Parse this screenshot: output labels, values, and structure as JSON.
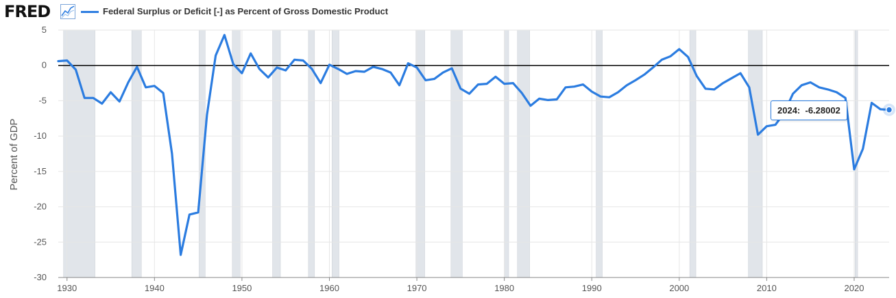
{
  "header": {
    "logo": "FRED",
    "logo_icon": "line-chart-icon",
    "legend_label": "Federal Surplus or Deficit [-] as Percent of Gross Domestic Product"
  },
  "tooltip": {
    "year": "2024:",
    "value": "-6.28002"
  },
  "colors": {
    "series": "#2B7CE0",
    "recession": "#E1E5EA",
    "zero_line": "#000000"
  },
  "chart_data": {
    "type": "line",
    "title": "Federal Surplus or Deficit [-] as Percent of Gross Domestic Product",
    "ylabel": "Percent of GDP",
    "xlabel": "",
    "xlim": [
      1929,
      2024
    ],
    "ylim": [
      -30,
      5
    ],
    "x_ticks": [
      1930,
      1940,
      1950,
      1960,
      1970,
      1980,
      1990,
      2000,
      2010,
      2020
    ],
    "y_ticks": [
      5,
      0,
      -5,
      -10,
      -15,
      -20,
      -25,
      -30
    ],
    "grid": true,
    "recessions": [
      [
        1929.6,
        1933.2
      ],
      [
        1937.4,
        1938.5
      ],
      [
        1945.1,
        1945.8
      ],
      [
        1948.9,
        1949.8
      ],
      [
        1953.5,
        1954.4
      ],
      [
        1957.6,
        1958.3
      ],
      [
        1960.3,
        1961.1
      ],
      [
        1969.9,
        1970.9
      ],
      [
        1973.9,
        1975.2
      ],
      [
        1980.0,
        1980.5
      ],
      [
        1981.5,
        1982.9
      ],
      [
        1990.5,
        1991.2
      ],
      [
        2001.2,
        2001.9
      ],
      [
        2007.9,
        2009.5
      ],
      [
        2020.1,
        2020.4
      ]
    ],
    "series": [
      {
        "name": "Federal Surplus or Deficit [-] as Percent of Gross Domestic Product",
        "x": [
          1929,
          1930,
          1931,
          1932,
          1933,
          1934,
          1935,
          1936,
          1937,
          1938,
          1939,
          1940,
          1941,
          1942,
          1943,
          1944,
          1945,
          1946,
          1947,
          1948,
          1949,
          1950,
          1951,
          1952,
          1953,
          1954,
          1955,
          1956,
          1957,
          1958,
          1959,
          1960,
          1961,
          1962,
          1963,
          1964,
          1965,
          1966,
          1967,
          1968,
          1969,
          1970,
          1971,
          1972,
          1973,
          1974,
          1975,
          1976,
          1977,
          1978,
          1979,
          1980,
          1981,
          1982,
          1983,
          1984,
          1985,
          1986,
          1987,
          1988,
          1989,
          1990,
          1991,
          1992,
          1993,
          1994,
          1995,
          1996,
          1997,
          1998,
          1999,
          2000,
          2001,
          2002,
          2003,
          2004,
          2005,
          2006,
          2007,
          2008,
          2009,
          2010,
          2011,
          2012,
          2013,
          2014,
          2015,
          2016,
          2017,
          2018,
          2019,
          2020,
          2021,
          2022,
          2023,
          2024
        ],
        "values": [
          0.6,
          0.7,
          -0.6,
          -4.6,
          -4.6,
          -5.4,
          -3.8,
          -5.1,
          -2.4,
          -0.2,
          -3.1,
          -2.9,
          -3.9,
          -12.5,
          -26.8,
          -21.1,
          -20.8,
          -7.0,
          1.4,
          4.3,
          0.2,
          -1.1,
          1.7,
          -0.5,
          -1.7,
          -0.3,
          -0.7,
          0.8,
          0.7,
          -0.5,
          -2.5,
          0.1,
          -0.5,
          -1.2,
          -0.8,
          -0.9,
          -0.2,
          -0.5,
          -1.0,
          -2.8,
          0.3,
          -0.3,
          -2.1,
          -1.9,
          -1.0,
          -0.4,
          -3.3,
          -4.0,
          -2.7,
          -2.6,
          -1.6,
          -2.6,
          -2.5,
          -3.9,
          -5.7,
          -4.7,
          -4.9,
          -4.8,
          -3.1,
          -3.0,
          -2.7,
          -3.7,
          -4.4,
          -4.5,
          -3.8,
          -2.8,
          -2.1,
          -1.3,
          -0.3,
          0.8,
          1.3,
          2.3,
          1.2,
          -1.5,
          -3.3,
          -3.4,
          -2.5,
          -1.8,
          -1.1,
          -3.1,
          -9.8,
          -8.6,
          -8.4,
          -6.7,
          -4.0,
          -2.8,
          -2.4,
          -3.1,
          -3.4,
          -3.8,
          -4.6,
          -14.7,
          -11.8,
          -5.3,
          -6.2,
          -6.28002
        ]
      }
    ]
  }
}
